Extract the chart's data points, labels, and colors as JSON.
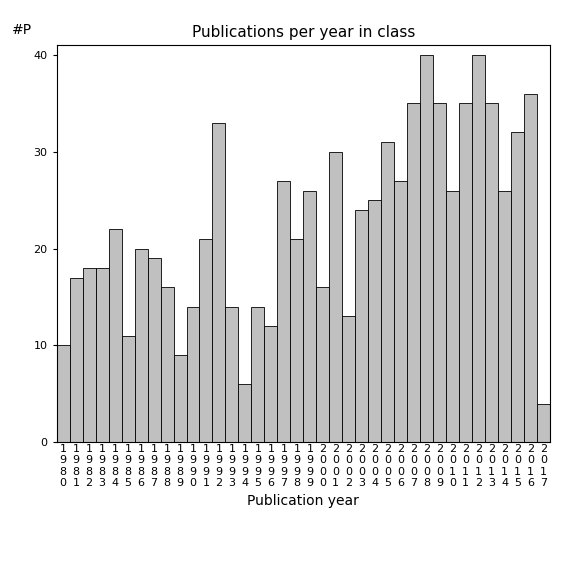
{
  "years": [
    1980,
    1981,
    1982,
    1983,
    1984,
    1985,
    1986,
    1987,
    1988,
    1989,
    1990,
    1991,
    1992,
    1993,
    1994,
    1995,
    1996,
    1997,
    1998,
    1999,
    2000,
    2001,
    2002,
    2003,
    2004,
    2005,
    2006,
    2007,
    2008,
    2009,
    2010,
    2011,
    2012,
    2013,
    2014,
    2015,
    2016,
    2017
  ],
  "values": [
    10,
    17,
    18,
    18,
    22,
    11,
    20,
    19,
    16,
    9,
    14,
    21,
    33,
    14,
    6,
    14,
    12,
    27,
    21,
    26,
    16,
    30,
    13,
    24,
    25,
    31,
    27,
    35,
    40,
    35,
    26,
    35,
    40,
    35,
    26,
    32,
    36,
    4
  ],
  "bar_color": "#c0c0c0",
  "bar_edgecolor": "#000000",
  "title": "Publications per year in class",
  "xlabel": "Publication year",
  "ylabel": "#P",
  "ylim": [
    0,
    41
  ],
  "yticks": [
    0,
    10,
    20,
    30,
    40
  ],
  "title_fontsize": 11,
  "label_fontsize": 10,
  "tick_fontsize": 8,
  "background_color": "#ffffff"
}
